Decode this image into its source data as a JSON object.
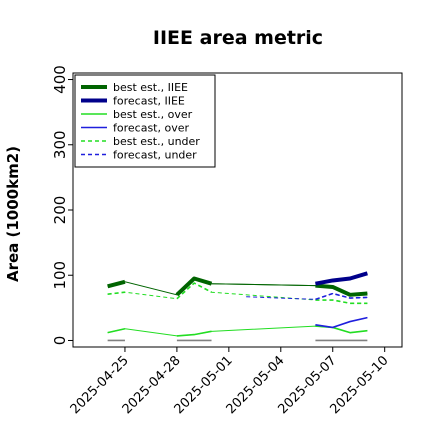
{
  "chart_data": {
    "type": "line",
    "title": "IIEE area metric",
    "xlabel": "",
    "ylabel": "Area (1000km2)",
    "xlim": [
      "2025-04-22",
      "2025-05-11"
    ],
    "ylim": [
      -10,
      410
    ],
    "yticks": [
      0,
      100,
      200,
      300,
      400
    ],
    "xticks": [
      {
        "date": "2025-04-25",
        "label": "2025-04-25",
        "color": "#000000"
      },
      {
        "date": "2025-04-28",
        "label": "2025-04-28",
        "color": "#000000"
      },
      {
        "date": "2025-05-01",
        "label": "2025-05-01",
        "color": "#228B22"
      },
      {
        "date": "2025-05-04",
        "label": "2025-05-04",
        "color": "#000000"
      },
      {
        "date": "2025-05-07",
        "label": "2025-05-07",
        "color": "#000000"
      },
      {
        "date": "2025-05-10",
        "label": "2025-05-10",
        "color": "#000000"
      }
    ],
    "grid": false,
    "legend_position": "top-left",
    "series": [
      {
        "name": "best est., IIEE",
        "color": "#006400",
        "width": 4,
        "dash": "",
        "points": [
          [
            "2025-04-24",
            83
          ],
          [
            "2025-04-25",
            90
          ],
          [
            "2025-04-28",
            70
          ],
          [
            "2025-04-29",
            95
          ],
          [
            "2025-04-30",
            87
          ],
          [
            "2025-05-06",
            84
          ],
          [
            "2025-05-07",
            82
          ],
          [
            "2025-05-08",
            70
          ],
          [
            "2025-05-09",
            72
          ]
        ]
      },
      {
        "name": "forecast, IIEE",
        "color": "#00008B",
        "width": 4,
        "dash": "",
        "points": [
          [
            "2025-05-06",
            87
          ],
          [
            "2025-05-07",
            92
          ],
          [
            "2025-05-08",
            95
          ],
          [
            "2025-05-09",
            103
          ]
        ]
      },
      {
        "name": "best est., over",
        "color": "#22DD22",
        "width": 1.6,
        "dash": "",
        "points": [
          [
            "2025-04-24",
            12
          ],
          [
            "2025-04-25",
            18
          ],
          [
            "2025-04-28",
            7
          ],
          [
            "2025-04-29",
            9
          ],
          [
            "2025-04-30",
            14
          ],
          [
            "2025-05-06",
            22
          ],
          [
            "2025-05-07",
            20
          ],
          [
            "2025-05-08",
            12
          ],
          [
            "2025-05-09",
            15
          ]
        ]
      },
      {
        "name": "forecast, over",
        "color": "#1f1fdd",
        "width": 1.6,
        "dash": "",
        "points": [
          [
            "2025-05-06",
            24
          ],
          [
            "2025-05-07",
            20
          ],
          [
            "2025-05-08",
            29
          ],
          [
            "2025-05-09",
            35
          ]
        ]
      },
      {
        "name": "best est., under",
        "color": "#22DD22",
        "width": 1.6,
        "dash": "4,3",
        "points": [
          [
            "2025-04-24",
            71
          ],
          [
            "2025-04-25",
            74
          ],
          [
            "2025-04-28",
            64
          ],
          [
            "2025-04-29",
            88
          ],
          [
            "2025-04-30",
            74
          ],
          [
            "2025-05-06",
            62
          ],
          [
            "2025-05-07",
            62
          ],
          [
            "2025-05-08",
            57
          ],
          [
            "2025-05-09",
            57
          ]
        ]
      },
      {
        "name": "forecast, under",
        "color": "#1f1fdd",
        "width": 1.6,
        "dash": "4,3",
        "points": [
          [
            "2025-05-02",
            67
          ],
          [
            "2025-05-06",
            63
          ],
          [
            "2025-05-07",
            72
          ],
          [
            "2025-05-08",
            65
          ],
          [
            "2025-05-09",
            66
          ]
        ]
      }
    ],
    "zero_segments": [
      [
        "2025-04-24",
        "2025-04-25"
      ],
      [
        "2025-04-28",
        "2025-04-30"
      ],
      [
        "2025-05-06",
        "2025-05-09"
      ]
    ],
    "zero_segment_color": "#808080",
    "thin_connectors": [
      {
        "color": "#006400",
        "points": [
          [
            "2025-04-30",
            87
          ],
          [
            "2025-05-06",
            84
          ]
        ]
      }
    ]
  }
}
